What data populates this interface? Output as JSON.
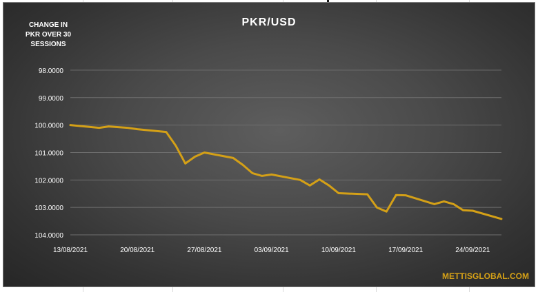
{
  "chart_data": {
    "type": "line",
    "title": "PKR/USD",
    "side_note": "CHANGE IN\nPKR OVER 30\nSESSIONS",
    "watermark": "METTISGLOBAL.COM",
    "y_tick_labels": [
      "98.0000",
      "99.0000",
      "100.0000",
      "101.0000",
      "102.0000",
      "103.0000",
      "104.0000"
    ],
    "y_ticks": [
      98,
      99,
      100,
      101,
      102,
      103,
      104
    ],
    "ylim": [
      97.5,
      104.2
    ],
    "y_inverted": true,
    "x_tick_labels": [
      "13/08/2021",
      "20/08/2021",
      "27/08/2021",
      "03/09/2021",
      "10/09/2021",
      "17/09/2021",
      "24/09/2021"
    ],
    "x_ticks": [
      "2021-08-13",
      "2021-08-20",
      "2021-08-27",
      "2021-09-03",
      "2021-09-10",
      "2021-09-17",
      "2021-09-24"
    ],
    "xlim": [
      "2021-08-13",
      "2021-09-27"
    ],
    "grid": true,
    "line_color": "#d4a017",
    "series": [
      {
        "x": [
          "2021-08-13",
          "2021-08-16",
          "2021-08-17",
          "2021-08-19",
          "2021-08-20",
          "2021-08-23",
          "2021-08-24",
          "2021-08-25",
          "2021-08-26",
          "2021-08-27",
          "2021-08-30",
          "2021-08-31",
          "2021-09-01",
          "2021-09-02",
          "2021-09-03",
          "2021-09-06",
          "2021-09-07",
          "2021-09-08",
          "2021-09-09",
          "2021-09-10",
          "2021-09-13",
          "2021-09-14",
          "2021-09-15",
          "2021-09-16",
          "2021-09-17",
          "2021-09-20",
          "2021-09-21",
          "2021-09-22",
          "2021-09-23",
          "2021-09-24",
          "2021-09-27"
        ],
        "values": [
          100.0,
          100.1,
          100.05,
          100.1,
          100.15,
          100.25,
          100.75,
          101.4,
          101.15,
          101.0,
          101.2,
          101.45,
          101.75,
          101.85,
          101.8,
          102.0,
          102.2,
          101.98,
          102.2,
          102.48,
          102.52,
          103.0,
          103.15,
          102.55,
          102.56,
          102.88,
          102.78,
          102.88,
          103.1,
          103.12,
          103.42
        ]
      }
    ]
  }
}
